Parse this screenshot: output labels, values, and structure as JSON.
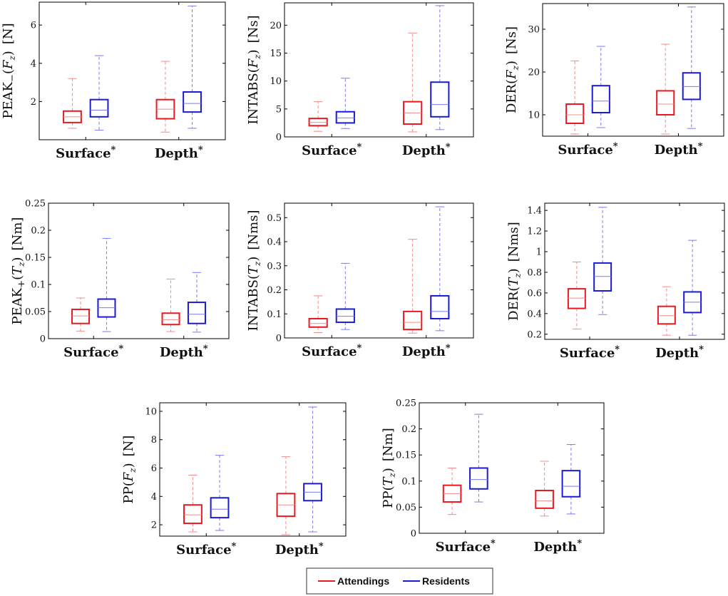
{
  "chart_data": [
    {
      "type": "box",
      "ylabel": {
        "pre": "PEAK",
        "op": "−",
        "var": "F",
        "sub": "z",
        "unit": "[N]"
      },
      "ylim": [
        0,
        7.2
      ],
      "yticks": [
        2,
        4,
        6
      ],
      "categories": [
        "Surface",
        "Depth"
      ],
      "series": [
        {
          "name": "Attendings",
          "boxes": [
            {
              "min": 0.6,
              "q1": 0.9,
              "median": 1.2,
              "q3": 1.5,
              "max": 3.2
            },
            {
              "min": 0.4,
              "q1": 1.1,
              "median": 1.6,
              "q3": 2.1,
              "max": 4.1
            }
          ]
        },
        {
          "name": "Residents",
          "boxes": [
            {
              "min": 0.5,
              "q1": 1.2,
              "median": 1.55,
              "q3": 2.1,
              "max": 4.4
            },
            {
              "min": 0.6,
              "q1": 1.45,
              "median": 1.9,
              "q3": 2.5,
              "max": 7.0
            }
          ]
        }
      ]
    },
    {
      "type": "box",
      "ylabel": {
        "pre": "INTABS",
        "op": "",
        "var": "F",
        "sub": "z",
        "unit": "[Ns]"
      },
      "ylim": [
        0,
        24
      ],
      "yticks": [
        0,
        5,
        10,
        15,
        20
      ],
      "categories": [
        "Surface",
        "Depth"
      ],
      "series": [
        {
          "name": "Attendings",
          "boxes": [
            {
              "min": 1.0,
              "q1": 2.0,
              "median": 2.6,
              "q3": 3.3,
              "max": 6.3
            },
            {
              "min": 0.9,
              "q1": 2.3,
              "median": 4.3,
              "q3": 6.3,
              "max": 18.6
            }
          ]
        },
        {
          "name": "Residents",
          "boxes": [
            {
              "min": 1.5,
              "q1": 2.5,
              "median": 3.4,
              "q3": 4.5,
              "max": 10.5
            },
            {
              "min": 1.3,
              "q1": 3.6,
              "median": 5.8,
              "q3": 9.8,
              "max": 23.5
            }
          ]
        }
      ]
    },
    {
      "type": "box",
      "ylabel": {
        "pre": "DER",
        "op": "",
        "var": "F",
        "sub": "z",
        "unit": "[Ns]"
      },
      "ylim": [
        5,
        36
      ],
      "yticks": [
        10,
        20,
        30
      ],
      "categories": [
        "Surface",
        "Depth"
      ],
      "series": [
        {
          "name": "Attendings",
          "boxes": [
            {
              "min": 5.5,
              "q1": 8.0,
              "median": 10.0,
              "q3": 12.5,
              "max": 22.6
            },
            {
              "min": 5.5,
              "q1": 10.0,
              "median": 12.5,
              "q3": 15.6,
              "max": 26.5
            }
          ]
        },
        {
          "name": "Residents",
          "boxes": [
            {
              "min": 7.0,
              "q1": 10.5,
              "median": 13.2,
              "q3": 16.8,
              "max": 26.0
            },
            {
              "min": 6.8,
              "q1": 13.6,
              "median": 16.6,
              "q3": 19.8,
              "max": 35.2
            }
          ]
        }
      ]
    },
    {
      "type": "box",
      "ylabel": {
        "pre": "PEAK",
        "op": "+",
        "var": "T",
        "sub": "z",
        "unit": "[Nm]"
      },
      "ylim": [
        0,
        0.25
      ],
      "yticks": [
        0,
        0.05,
        0.1,
        0.15,
        0.2,
        0.25
      ],
      "categories": [
        "Surface",
        "Depth"
      ],
      "series": [
        {
          "name": "Attendings",
          "boxes": [
            {
              "min": 0.014,
              "q1": 0.028,
              "median": 0.042,
              "q3": 0.054,
              "max": 0.075
            },
            {
              "min": 0.013,
              "q1": 0.026,
              "median": 0.035,
              "q3": 0.047,
              "max": 0.11
            }
          ]
        },
        {
          "name": "Residents",
          "boxes": [
            {
              "min": 0.013,
              "q1": 0.04,
              "median": 0.057,
              "q3": 0.073,
              "max": 0.185
            },
            {
              "min": 0.012,
              "q1": 0.028,
              "median": 0.045,
              "q3": 0.067,
              "max": 0.122
            }
          ]
        }
      ]
    },
    {
      "type": "box",
      "ylabel": {
        "pre": "INTABS",
        "op": "",
        "var": "T",
        "sub": "z",
        "unit": "[Nms]"
      },
      "ylim": [
        0,
        0.56
      ],
      "yticks": [
        0,
        0.1,
        0.2,
        0.3,
        0.4,
        0.5
      ],
      "categories": [
        "Surface",
        "Depth"
      ],
      "series": [
        {
          "name": "Attendings",
          "boxes": [
            {
              "min": 0.022,
              "q1": 0.045,
              "median": 0.06,
              "q3": 0.08,
              "max": 0.175
            },
            {
              "min": 0.02,
              "q1": 0.035,
              "median": 0.065,
              "q3": 0.11,
              "max": 0.41
            }
          ]
        },
        {
          "name": "Residents",
          "boxes": [
            {
              "min": 0.035,
              "q1": 0.065,
              "median": 0.09,
              "q3": 0.12,
              "max": 0.31
            },
            {
              "min": 0.03,
              "q1": 0.08,
              "median": 0.11,
              "q3": 0.175,
              "max": 0.545
            }
          ]
        }
      ]
    },
    {
      "type": "box",
      "ylabel": {
        "pre": "DER",
        "op": "",
        "var": "T",
        "sub": "z",
        "unit": "[Nms]"
      },
      "ylim": [
        0.15,
        1.47
      ],
      "yticks": [
        0.2,
        0.4,
        0.6,
        0.8,
        1,
        1.2,
        1.4
      ],
      "categories": [
        "Surface",
        "Depth"
      ],
      "series": [
        {
          "name": "Attendings",
          "boxes": [
            {
              "min": 0.25,
              "q1": 0.45,
              "median": 0.55,
              "q3": 0.64,
              "max": 0.9
            },
            {
              "min": 0.19,
              "q1": 0.3,
              "median": 0.38,
              "q3": 0.47,
              "max": 0.66
            }
          ]
        },
        {
          "name": "Residents",
          "boxes": [
            {
              "min": 0.39,
              "q1": 0.62,
              "median": 0.76,
              "q3": 0.89,
              "max": 1.43
            },
            {
              "min": 0.19,
              "q1": 0.41,
              "median": 0.51,
              "q3": 0.61,
              "max": 1.11
            }
          ]
        }
      ]
    },
    {
      "type": "box",
      "ylabel": {
        "pre": "PP",
        "op": "",
        "var": "F",
        "sub": "z",
        "unit": "[N]"
      },
      "ylim": [
        1.2,
        10.6
      ],
      "yticks": [
        2,
        4,
        6,
        8,
        10
      ],
      "categories": [
        "Surface",
        "Depth"
      ],
      "series": [
        {
          "name": "Attendings",
          "boxes": [
            {
              "min": 1.5,
              "q1": 2.1,
              "median": 2.7,
              "q3": 3.4,
              "max": 5.5
            },
            {
              "min": 1.3,
              "q1": 2.6,
              "median": 3.4,
              "q3": 4.2,
              "max": 6.8
            }
          ]
        },
        {
          "name": "Residents",
          "boxes": [
            {
              "min": 1.6,
              "q1": 2.5,
              "median": 3.1,
              "q3": 3.9,
              "max": 6.9
            },
            {
              "min": 1.5,
              "q1": 3.7,
              "median": 4.3,
              "q3": 4.9,
              "max": 10.3
            }
          ]
        }
      ]
    },
    {
      "type": "box",
      "ylabel": {
        "pre": "PP",
        "op": "",
        "var": "T",
        "sub": "z",
        "unit": "[Nm]"
      },
      "ylim": [
        0,
        0.25
      ],
      "yticks": [
        0,
        0.05,
        0.1,
        0.15,
        0.2,
        0.25
      ],
      "categories": [
        "Surface",
        "Depth"
      ],
      "series": [
        {
          "name": "Attendings",
          "boxes": [
            {
              "min": 0.036,
              "q1": 0.06,
              "median": 0.076,
              "q3": 0.092,
              "max": 0.125
            },
            {
              "min": 0.033,
              "q1": 0.048,
              "median": 0.062,
              "q3": 0.082,
              "max": 0.138
            }
          ]
        },
        {
          "name": "Residents",
          "boxes": [
            {
              "min": 0.06,
              "q1": 0.085,
              "median": 0.103,
              "q3": 0.125,
              "max": 0.228
            },
            {
              "min": 0.037,
              "q1": 0.07,
              "median": 0.09,
              "q3": 0.12,
              "max": 0.17
            }
          ]
        }
      ]
    }
  ],
  "legend": {
    "items": [
      {
        "label": "Attendings",
        "color": "#e8191f"
      },
      {
        "label": "Residents",
        "color": "#1b1bd6"
      }
    ]
  },
  "colors": {
    "attendings_box": "#e8191f",
    "attendings_whisker": "#f08c8c",
    "residents_box": "#1b1bd6",
    "residents_whisker": "#7b7bee"
  },
  "category_marker": "*"
}
